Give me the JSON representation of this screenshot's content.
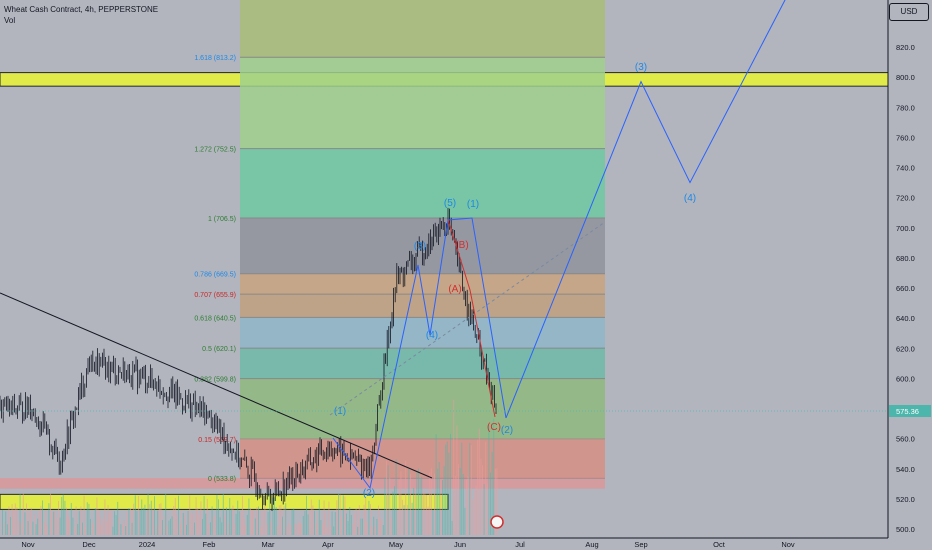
{
  "legend": {
    "symbol_line": "Wheat Cash Contract, 4h, PEPPERSTONE",
    "indicator_line": "Vol"
  },
  "currency_button": "USD",
  "last_price_label": "575.36",
  "colors": {
    "background": "#b2b5be",
    "candle": "#131722",
    "wave_line": "#2962ff",
    "wave_label_blue": "#1e88e5",
    "wave_label_red": "#d32f2f",
    "trendline": "#131722",
    "yellow_zone": "#e6f03c",
    "fib_channel": "#888888"
  },
  "chart_data": {
    "type": "candlestick",
    "x_axis_labels": [
      "Nov",
      "Dec",
      "2024",
      "Feb",
      "Mar",
      "Apr",
      "May",
      "Jun",
      "Jul",
      "Aug",
      "Sep",
      "Oct",
      "Nov"
    ],
    "y_axis": {
      "ticks": [
        500,
        520,
        540,
        560,
        580,
        600,
        620,
        640,
        660,
        680,
        700,
        720,
        740,
        760,
        780,
        800,
        820
      ],
      "range": [
        495,
        855
      ]
    },
    "price_path": [
      {
        "x": "Nov",
        "y": 585
      },
      {
        "x": "mid-Nov",
        "y": 545
      },
      {
        "x": "Dec",
        "y": 610
      },
      {
        "x": "2024",
        "y": 600
      },
      {
        "x": "Feb",
        "y": 575
      },
      {
        "x": "Mar",
        "y": 520
      },
      {
        "x": "Apr",
        "y": 555
      },
      {
        "x": "late-Apr",
        "y": 540
      },
      {
        "x": "May",
        "y": 665
      },
      {
        "x": "late-May",
        "y": 705
      },
      {
        "x": "early-Jun",
        "y": 660
      },
      {
        "x": "mid-Jun",
        "y": 580
      }
    ],
    "fibonacci_levels": [
      {
        "label": "1.618 (813.2)",
        "value": 813.2,
        "fill": "#9fd08d"
      },
      {
        "label": "1.272 (752.5)",
        "value": 752.5,
        "fill": "#6fc9a3"
      },
      {
        "label": "1 (706.5)",
        "value": 706.5,
        "fill": "#8f939c"
      },
      {
        "label": "0.786 (669.5)",
        "value": 669.5,
        "fill": "#c9a37f"
      },
      {
        "label": "0.707 (655.9)",
        "value": 655.9,
        "fill": "#bfa07f"
      },
      {
        "label": "0.618 (640.5)",
        "value": 640.5,
        "fill": "#8fb6c9"
      },
      {
        "label": "0.5 (620.1)",
        "value": 620.1,
        "fill": "#6fbaa8"
      },
      {
        "label": "0.382 (599.8)",
        "value": 599.8,
        "fill": "#8fb87f"
      },
      {
        "label": "0.15 (559.7)",
        "value": 559.7,
        "fill": "#a8c28a"
      },
      {
        "label": "0 (533.8)",
        "value": 533.8,
        "fill": "#d9989a"
      }
    ],
    "elliott_labels": [
      {
        "text": "(1)",
        "x": "Apr",
        "y": 575,
        "color": "blue"
      },
      {
        "text": "(2)",
        "x": "late-Apr",
        "y": 520,
        "color": "blue"
      },
      {
        "text": "(3)",
        "x": "May",
        "y": 695,
        "color": "blue"
      },
      {
        "text": "(4)",
        "x": "mid-May",
        "y": 640,
        "color": "blue"
      },
      {
        "text": "(5)",
        "x": "late-May",
        "y": 715,
        "color": "blue"
      },
      {
        "text": "(1)",
        "x": "early-Jun",
        "y": 715,
        "color": "blue"
      },
      {
        "text": "(B)",
        "x": "early-Jun",
        "y": 690,
        "color": "red"
      },
      {
        "text": "(A)",
        "x": "early-Jun",
        "y": 662,
        "color": "red"
      },
      {
        "text": "(C)",
        "x": "mid-Jun",
        "y": 560,
        "color": "red"
      },
      {
        "text": "(2)",
        "x": "mid-Jun",
        "y": 557,
        "color": "blue"
      },
      {
        "text": "(3)",
        "x": "Sep",
        "y": 806,
        "color": "blue"
      },
      {
        "text": "(4)",
        "x": "Sep-Oct",
        "y": 722,
        "color": "blue"
      }
    ],
    "projection": [
      {
        "x": "mid-Jun",
        "y": 575
      },
      {
        "x": "Sep",
        "y": 797
      },
      {
        "x": "Sep-Oct",
        "y": 730
      },
      {
        "x": "Nov",
        "y": 855
      }
    ],
    "zones": [
      {
        "name": "yellow-band-top",
        "from": 794,
        "to": 803
      },
      {
        "name": "yellow-band-bottom",
        "from": 513,
        "to": 523
      }
    ]
  }
}
